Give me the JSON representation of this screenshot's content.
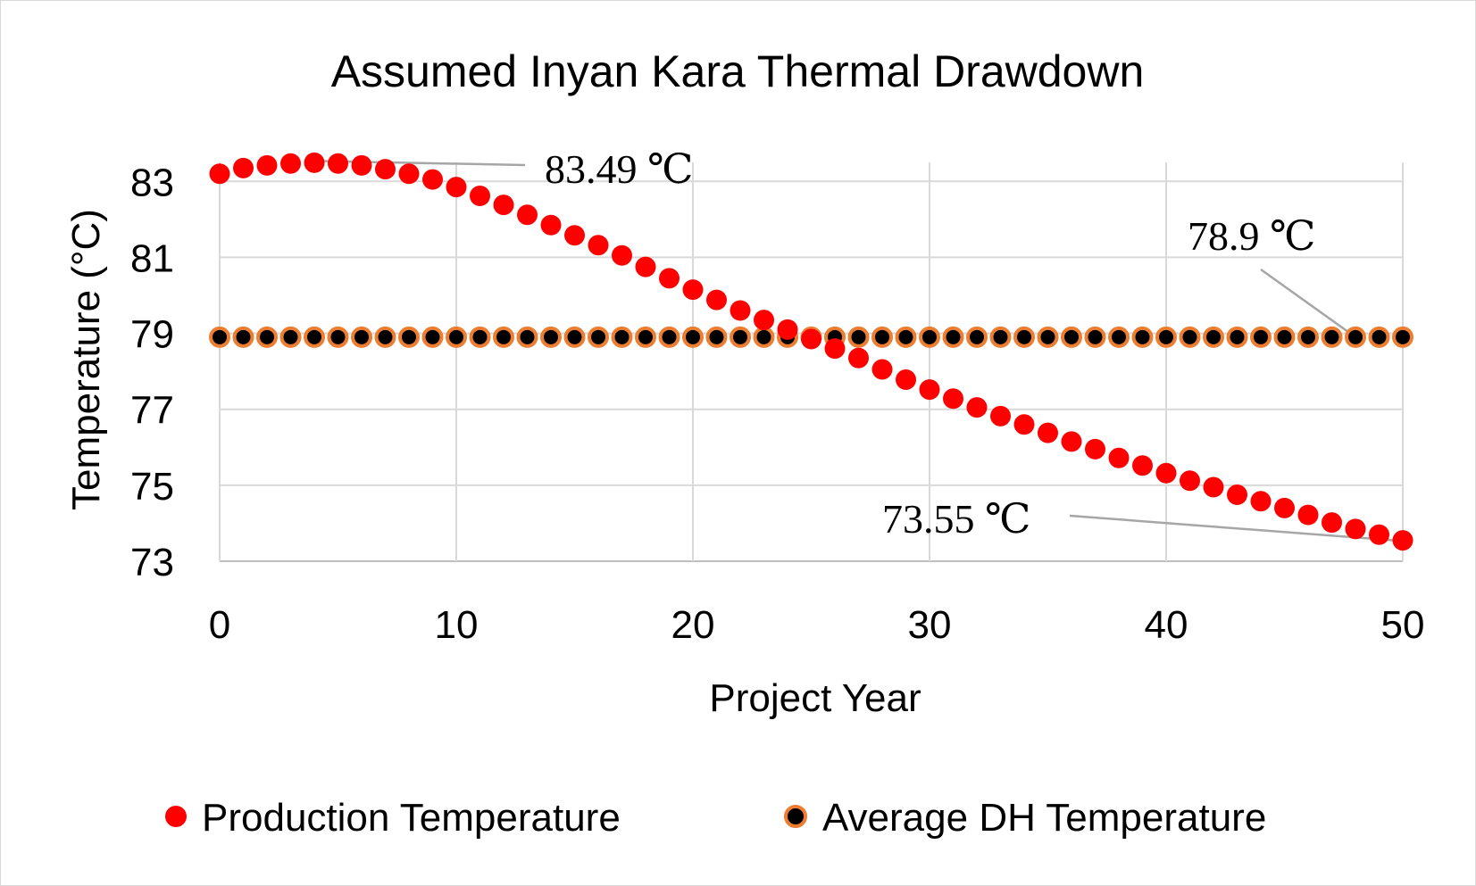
{
  "chart_data": {
    "type": "scatter",
    "title": "Assumed Inyan Kara Thermal Drawdown",
    "xlabel": "Project Year",
    "ylabel": "Temperature (°C)",
    "xlim": [
      0,
      50
    ],
    "ylim": [
      73,
      84
    ],
    "x_ticks": [
      0,
      10,
      20,
      30,
      40,
      50
    ],
    "y_ticks": [
      73,
      75,
      77,
      79,
      81,
      83
    ],
    "grid": true,
    "legend_position": "bottom",
    "x": [
      0,
      1,
      2,
      3,
      4,
      5,
      6,
      7,
      8,
      9,
      10,
      11,
      12,
      13,
      14,
      15,
      16,
      17,
      18,
      19,
      20,
      21,
      22,
      23,
      24,
      25,
      26,
      27,
      28,
      29,
      30,
      31,
      32,
      33,
      34,
      35,
      36,
      37,
      38,
      39,
      40,
      41,
      42,
      43,
      44,
      45,
      46,
      47,
      48,
      49,
      50
    ],
    "series": [
      {
        "name": "Production Temperature",
        "color": "#ff0000",
        "values": [
          83.2,
          83.35,
          83.42,
          83.47,
          83.49,
          83.47,
          83.42,
          83.32,
          83.2,
          83.05,
          82.85,
          82.62,
          82.38,
          82.12,
          81.85,
          81.58,
          81.32,
          81.05,
          80.75,
          80.45,
          80.15,
          79.88,
          79.6,
          79.35,
          79.1,
          78.85,
          78.6,
          78.35,
          78.05,
          77.78,
          77.52,
          77.28,
          77.05,
          76.82,
          76.6,
          76.38,
          76.15,
          75.95,
          75.72,
          75.52,
          75.32,
          75.12,
          74.95,
          74.75,
          74.58,
          74.4,
          74.22,
          74.02,
          73.85,
          73.7,
          73.55
        ]
      },
      {
        "name": "Average DH Temperature",
        "color": "#000000",
        "edge_color": "#ed7d31",
        "values": [
          78.9,
          78.9,
          78.9,
          78.9,
          78.9,
          78.9,
          78.9,
          78.9,
          78.9,
          78.9,
          78.9,
          78.9,
          78.9,
          78.9,
          78.9,
          78.9,
          78.9,
          78.9,
          78.9,
          78.9,
          78.9,
          78.9,
          78.9,
          78.9,
          78.9,
          78.9,
          78.9,
          78.9,
          78.9,
          78.9,
          78.9,
          78.9,
          78.9,
          78.9,
          78.9,
          78.9,
          78.9,
          78.9,
          78.9,
          78.9,
          78.9,
          78.9,
          78.9,
          78.9,
          78.9,
          78.9,
          78.9,
          78.9,
          78.9,
          78.9,
          78.9
        ]
      }
    ],
    "annotations": [
      {
        "text": "83.49 ℃",
        "x": 4,
        "y": 83.49
      },
      {
        "text": "78.9 ℃",
        "x": 48,
        "y": 78.9
      },
      {
        "text": "73.55 ℃",
        "x": 50,
        "y": 73.55
      }
    ]
  }
}
